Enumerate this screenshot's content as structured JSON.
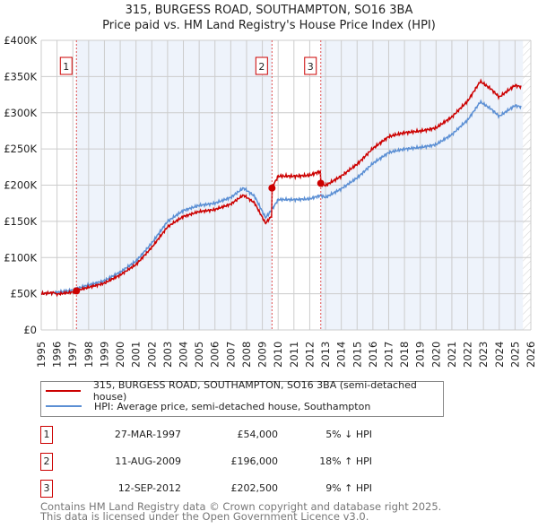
{
  "chart_data": {
    "type": "line",
    "title": "315, BURGESS ROAD, SOUTHAMPTON, SO16 3BA",
    "subtitle": "Price paid vs. HM Land Registry's House Price Index (HPI)",
    "xlabel": "",
    "ylabel": "",
    "xlim": [
      1995,
      2026
    ],
    "ylim": [
      0,
      400000
    ],
    "y_ticks": [
      "£0",
      "£50K",
      "£100K",
      "£150K",
      "£200K",
      "£250K",
      "£300K",
      "£350K",
      "£400K"
    ],
    "y_tick_values": [
      0,
      50000,
      100000,
      150000,
      200000,
      250000,
      300000,
      350000,
      400000
    ],
    "x_ticks": [
      "1995",
      "1996",
      "1997",
      "1998",
      "1999",
      "2000",
      "2001",
      "2002",
      "2003",
      "2004",
      "2005",
      "2006",
      "2007",
      "2008",
      "2009",
      "2010",
      "2011",
      "2012",
      "2013",
      "2014",
      "2015",
      "2016",
      "2017",
      "2018",
      "2019",
      "2020",
      "2021",
      "2022",
      "2023",
      "2024",
      "2025",
      "2026"
    ],
    "grid": true,
    "series": [
      {
        "name": "315, BURGESS ROAD, SOUTHAMPTON, SO16 3BA (semi-detached house)",
        "color": "#cc0000"
      },
      {
        "name": "HPI: Average price, semi-detached house, Southampton",
        "color": "#5b8fd4",
        "x": [
          1995,
          1996,
          1997,
          1997.2,
          1998,
          1999,
          2000,
          2001,
          2002,
          2003,
          2004,
          2005,
          2006,
          2007,
          2007.8,
          2008.5,
          2009.2,
          2009.6,
          2010,
          2011,
          2012,
          2012.7,
          2013,
          2014,
          2015,
          2016,
          2017,
          2018,
          2019,
          2020,
          2021,
          2022,
          2022.8,
          2023.5,
          2024,
          2025,
          2025.4
        ],
        "values": [
          50000,
          52000,
          55000,
          57000,
          62000,
          68000,
          80000,
          95000,
          120000,
          150000,
          165000,
          172000,
          175000,
          183000,
          196000,
          185000,
          155000,
          166000,
          180000,
          180000,
          181000,
          186000,
          183000,
          195000,
          210000,
          230000,
          245000,
          250000,
          252000,
          256000,
          270000,
          290000,
          315000,
          305000,
          295000,
          310000,
          308000
        ]
      }
    ],
    "sales": [
      {
        "id": "1",
        "year": 1997.23,
        "date": "27-MAR-1997",
        "price": 54000,
        "price_label": "£54,000",
        "hpi_diff": "5% ↓ HPI"
      },
      {
        "id": "2",
        "year": 2009.61,
        "date": "11-AUG-2009",
        "price": 196000,
        "price_label": "£196,000",
        "hpi_diff": "18% ↑ HPI"
      },
      {
        "id": "3",
        "year": 2012.7,
        "date": "12-SEP-2012",
        "price": 202500,
        "price_label": "£202,500",
        "hpi_diff": "9% ↑ HPI"
      }
    ],
    "forecast_from": 2025.5
  },
  "footer": {
    "line1": "Contains HM Land Registry data © Crown copyright and database right 2025.",
    "line2": "This data is licensed under the Open Government Licence v3.0."
  }
}
